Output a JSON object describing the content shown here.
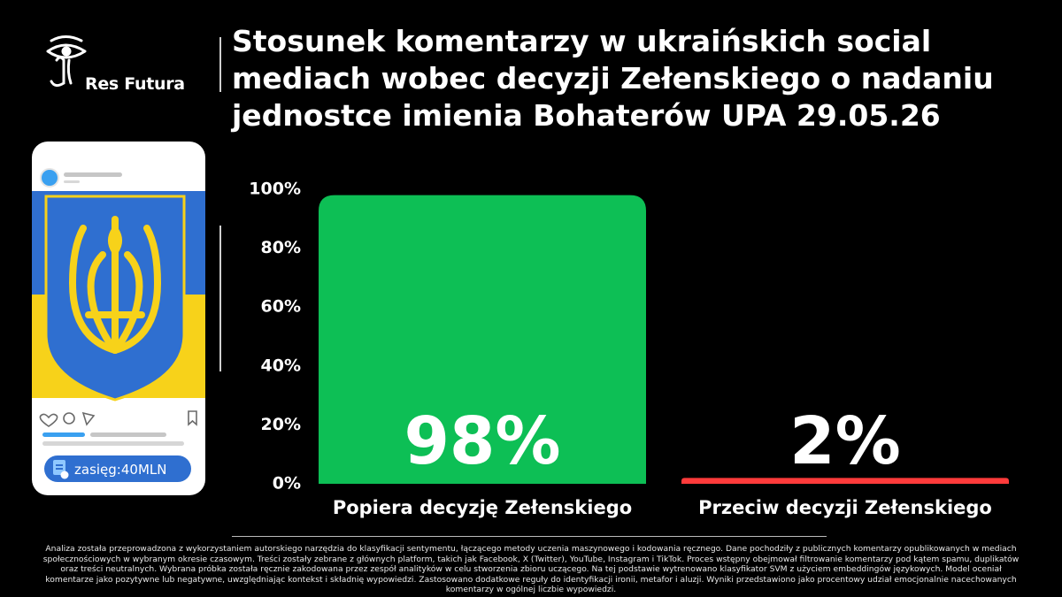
{
  "brand": {
    "name": "Res Futura"
  },
  "title": "Stosunek komentarzy w ukraińskich social mediach wobec decyzji Zełenskiego o nadaniu jednostce imienia Bohaterów UPA 29.05.26",
  "phone_card": {
    "reach_label": "zasięg:40MLN",
    "flag_colors": [
      "#2f6fd0",
      "#f7d21a"
    ],
    "emblem_color": "#f7d21a"
  },
  "chart_data": {
    "type": "bar",
    "title": "Stosunek komentarzy w ukraińskich social mediach wobec decyzji Zełenskiego o nadaniu jednostce imienia Bohaterów UPA 29.05.26",
    "categories": [
      "Popiera decyzję Zełenskiego",
      "Przeciw decyzji Zełenskiego"
    ],
    "values": [
      98,
      2
    ],
    "value_labels": [
      "98%",
      "2%"
    ],
    "colors": [
      "#0dbf55",
      "#ff3b3b"
    ],
    "y_ticks": [
      "0%",
      "20%",
      "40%",
      "60%",
      "80%",
      "100%"
    ],
    "ylim": [
      0,
      100
    ],
    "grid": false
  },
  "footnote": "Analiza została przeprowadzona z wykorzystaniem autorskiego narzędzia do klasyfikacji sentymentu, łączącego metody uczenia maszynowego i kodowania ręcznego. Dane pochodziły z publicznych komentarzy opublikowanych w mediach społecznościowych w wybranym okresie czasowym. Treści zostały zebrane z głównych platform, takich jak Facebook, X (Twitter), YouTube, Instagram i TikTok. Proces wstępny obejmował filtrowanie komentarzy pod kątem spamu, duplikatów oraz treści neutralnych. Wybrana próbka została ręcznie zakodowana przez zespół analityków w celu stworzenia zbioru uczącego. Na tej podstawie wytrenowano klasyfikator SVM z użyciem embeddingów językowych. Model oceniał komentarze jako pozytywne lub negatywne, uwzględniając kontekst i składnię wypowiedzi. Zastosowano dodatkowe reguły do identyfikacji ironii, metafor i aluzji. Wyniki przedstawiono jako procentowy udział emocjonalnie nacechowanych komentarzy w ogólnej liczbie wypowiedzi."
}
